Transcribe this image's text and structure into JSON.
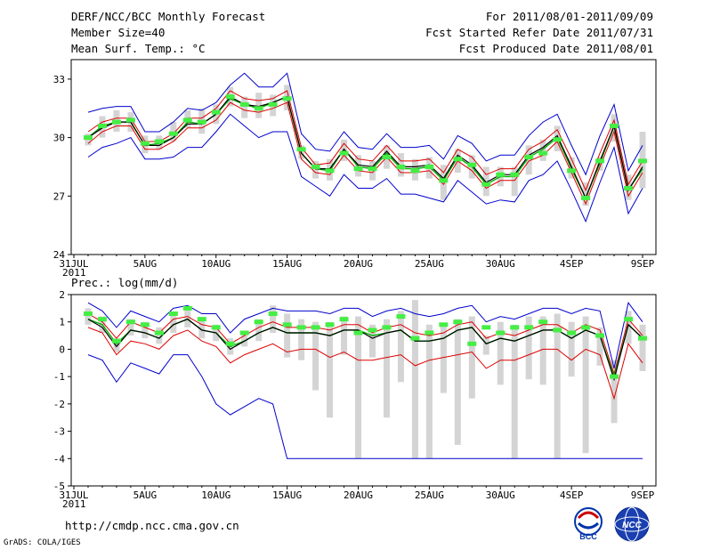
{
  "header": {
    "title": "DERF/NCC/BCC Monthly Forecast",
    "member_size": "Member Size=40",
    "top_variable": "Mean Surf. Temp.: °C",
    "forecast_period": "For 2011/08/01-2011/09/09",
    "fcst_started": "Fcst Started Refer Date 2011/07/31",
    "fcst_produced": "Fcst Produced Date 2011/08/01"
  },
  "footer": {
    "url": "http://cmdp.ncc.cma.gov.cn",
    "grads_credit": "GrADS: COLA/IGES",
    "logo_bcc": "BCC",
    "logo_ncc": "NCC"
  },
  "colors": {
    "envelope": "#0000cc",
    "spread": "#dd0000",
    "median": "#000000",
    "ensemble_mean": "#00aa00",
    "obs_marker": "#44ee44",
    "range_bar": "#d4d4d4"
  },
  "chart_data": [
    {
      "type": "line",
      "title": "Mean Surf. Temp.: °C",
      "x": [
        1,
        2,
        3,
        4,
        5,
        6,
        7,
        8,
        9,
        10,
        11,
        12,
        13,
        14,
        15,
        16,
        17,
        18,
        19,
        20,
        21,
        22,
        23,
        24,
        25,
        26,
        27,
        28,
        29,
        30,
        31,
        32,
        33,
        34,
        35,
        36,
        37,
        38,
        39,
        40
      ],
      "x_tick_labels": [
        {
          "x": 0,
          "label": "31JUL",
          "sublabel": "2011"
        },
        {
          "x": 5,
          "label": "5AUG"
        },
        {
          "x": 10,
          "label": "10AUG"
        },
        {
          "x": 15,
          "label": "15AUG"
        },
        {
          "x": 20,
          "label": "20AUG"
        },
        {
          "x": 25,
          "label": "25AUG"
        },
        {
          "x": 30,
          "label": "30AUG"
        },
        {
          "x": 35,
          "label": "4SEP"
        },
        {
          "x": 40,
          "label": "9SEP"
        }
      ],
      "xlim": [
        0,
        40.5
      ],
      "ylim": [
        24,
        34
      ],
      "yticks": [
        24,
        27,
        30,
        33
      ],
      "series": [
        {
          "name": "max",
          "values": [
            31.3,
            31.5,
            31.6,
            31.6,
            30.3,
            30.3,
            30.8,
            31.5,
            31.4,
            31.8,
            32.7,
            33.3,
            32.6,
            32.6,
            33.3,
            30.2,
            29.4,
            29.3,
            30.3,
            29.5,
            29.4,
            30.2,
            29.5,
            29.5,
            29.6,
            28.9,
            30.1,
            29.7,
            28.8,
            29.1,
            29.1,
            30.1,
            30.8,
            31.2,
            29.6,
            28.1,
            30.1,
            31.7,
            28.3,
            29.6
          ]
        },
        {
          "name": "upper",
          "values": [
            30.3,
            30.8,
            31.0,
            31.0,
            29.8,
            29.8,
            30.2,
            31.0,
            31.0,
            31.5,
            32.4,
            32.0,
            31.9,
            32.0,
            32.4,
            29.5,
            28.6,
            28.7,
            29.7,
            28.9,
            28.8,
            29.6,
            28.8,
            28.8,
            28.9,
            28.2,
            29.4,
            29.0,
            28.1,
            28.4,
            28.4,
            29.4,
            29.8,
            30.4,
            28.9,
            27.3,
            29.2,
            30.9,
            27.6,
            28.8
          ]
        },
        {
          "name": "median",
          "values": [
            30.0,
            30.5,
            30.8,
            30.8,
            29.6,
            29.6,
            30.0,
            30.7,
            30.7,
            31.2,
            32.1,
            31.7,
            31.6,
            31.8,
            32.1,
            29.2,
            28.4,
            28.4,
            29.4,
            28.6,
            28.5,
            29.3,
            28.5,
            28.5,
            28.6,
            27.9,
            29.1,
            28.6,
            27.7,
            28.1,
            28.1,
            29.1,
            29.5,
            30.1,
            28.5,
            26.9,
            28.8,
            30.6,
            27.3,
            28.5
          ]
        },
        {
          "name": "mean",
          "values": [
            30.0,
            30.6,
            30.8,
            30.8,
            29.6,
            29.7,
            30.0,
            30.8,
            30.7,
            31.2,
            32.0,
            31.7,
            31.5,
            31.8,
            32.1,
            29.2,
            28.4,
            28.3,
            29.4,
            28.5,
            28.4,
            29.2,
            28.4,
            28.4,
            28.5,
            27.8,
            29.0,
            28.5,
            27.6,
            28.0,
            28.0,
            29.0,
            29.4,
            30.0,
            28.4,
            26.9,
            28.7,
            30.6,
            27.3,
            28.4
          ]
        },
        {
          "name": "lower",
          "values": [
            29.7,
            30.3,
            30.6,
            30.6,
            29.4,
            29.4,
            29.8,
            30.5,
            30.5,
            30.9,
            31.8,
            31.4,
            31.3,
            31.5,
            31.8,
            28.9,
            28.2,
            28.1,
            29.1,
            28.3,
            28.2,
            29.0,
            28.2,
            28.2,
            28.3,
            27.6,
            28.8,
            28.3,
            27.4,
            27.8,
            27.8,
            28.8,
            29.1,
            29.8,
            28.2,
            26.6,
            28.5,
            30.3,
            27.0,
            28.2
          ]
        },
        {
          "name": "min",
          "values": [
            29.0,
            29.5,
            29.7,
            30.0,
            28.9,
            28.9,
            29.0,
            29.5,
            29.5,
            30.3,
            31.2,
            30.6,
            30.0,
            30.3,
            30.3,
            28.0,
            27.5,
            27.0,
            28.1,
            27.4,
            27.4,
            27.9,
            27.1,
            27.1,
            26.9,
            26.7,
            27.8,
            27.2,
            26.6,
            26.8,
            26.7,
            27.8,
            28.1,
            28.8,
            27.3,
            25.7,
            27.7,
            29.5,
            26.1,
            27.4
          ]
        }
      ],
      "obs_markers": [
        30.0,
        30.6,
        30.8,
        30.9,
        29.7,
        29.8,
        30.2,
        30.9,
        30.8,
        31.3,
        32.1,
        31.7,
        31.5,
        31.7,
        32.0,
        29.4,
        28.5,
        28.3,
        29.2,
        28.4,
        28.4,
        29.0,
        28.5,
        28.3,
        28.5,
        27.8,
        28.9,
        28.6,
        27.6,
        28.1,
        28.1,
        29.0,
        29.2,
        29.9,
        28.3,
        26.9,
        28.8,
        30.6,
        27.4,
        28.8
      ],
      "range_bars": [
        [
          29.6,
          30.2
        ],
        [
          30.0,
          31.1
        ],
        [
          30.3,
          31.4
        ],
        [
          30.3,
          31.3
        ],
        [
          29.2,
          30.1
        ],
        [
          29.4,
          30.1
        ],
        [
          29.8,
          30.8
        ],
        [
          30.5,
          31.4
        ],
        [
          30.2,
          31.5
        ],
        [
          30.7,
          31.7
        ],
        [
          31.6,
          32.6
        ],
        [
          31.0,
          32.1
        ],
        [
          31.0,
          32.3
        ],
        [
          31.1,
          32.2
        ],
        [
          31.4,
          32.7
        ],
        [
          28.9,
          29.6
        ],
        [
          27.9,
          28.8
        ],
        [
          27.8,
          28.9
        ],
        [
          28.8,
          29.9
        ],
        [
          28.0,
          29.1
        ],
        [
          27.8,
          28.8
        ],
        [
          28.4,
          29.6
        ],
        [
          28.0,
          29.2
        ],
        [
          27.8,
          28.9
        ],
        [
          27.9,
          29.0
        ],
        [
          26.8,
          28.6
        ],
        [
          28.2,
          29.4
        ],
        [
          27.9,
          29.1
        ],
        [
          27.0,
          28.5
        ],
        [
          27.5,
          28.5
        ],
        [
          27.0,
          28.5
        ],
        [
          28.1,
          29.6
        ],
        [
          28.8,
          29.9
        ],
        [
          29.3,
          30.6
        ],
        [
          27.9,
          29.0
        ],
        [
          26.5,
          27.7
        ],
        [
          28.3,
          29.0
        ],
        [
          29.8,
          31.2
        ],
        [
          26.8,
          28.1
        ],
        [
          27.4,
          30.3
        ]
      ]
    },
    {
      "type": "line",
      "title": "Prec.: log(mm/d)",
      "x": [
        1,
        2,
        3,
        4,
        5,
        6,
        7,
        8,
        9,
        10,
        11,
        12,
        13,
        14,
        15,
        16,
        17,
        18,
        19,
        20,
        21,
        22,
        23,
        24,
        25,
        26,
        27,
        28,
        29,
        30,
        31,
        32,
        33,
        34,
        35,
        36,
        37,
        38,
        39,
        40
      ],
      "x_tick_labels": [
        {
          "x": 0,
          "label": "31JUL",
          "sublabel": "2011"
        },
        {
          "x": 5,
          "label": "5AUG"
        },
        {
          "x": 10,
          "label": "10AUG"
        },
        {
          "x": 15,
          "label": "15AUG"
        },
        {
          "x": 20,
          "label": "20AUG"
        },
        {
          "x": 25,
          "label": "25AUG"
        },
        {
          "x": 30,
          "label": "30AUG"
        },
        {
          "x": 35,
          "label": "4SEP"
        },
        {
          "x": 40,
          "label": "9SEP"
        }
      ],
      "xlim": [
        0,
        40.5
      ],
      "ylim": [
        -5,
        2
      ],
      "yticks": [
        -5,
        -4,
        -3,
        -2,
        -1,
        0,
        1,
        2
      ],
      "series": [
        {
          "name": "max",
          "values": [
            1.7,
            1.4,
            0.8,
            1.4,
            1.2,
            1.0,
            1.5,
            1.6,
            1.3,
            1.3,
            0.6,
            1.1,
            1.3,
            1.5,
            1.4,
            1.4,
            1.4,
            1.3,
            1.5,
            1.5,
            1.2,
            1.4,
            1.5,
            1.3,
            1.2,
            1.3,
            1.5,
            1.6,
            1.0,
            1.2,
            1.1,
            1.3,
            1.5,
            1.5,
            1.3,
            1.5,
            1.4,
            -0.7,
            1.7,
            1.0
          ]
        },
        {
          "name": "upper",
          "values": [
            1.3,
            1.0,
            0.4,
            1.0,
            0.8,
            0.6,
            1.1,
            1.2,
            0.9,
            0.8,
            0.2,
            0.5,
            0.8,
            1.0,
            0.8,
            0.8,
            0.8,
            0.7,
            0.9,
            0.9,
            0.6,
            0.8,
            0.9,
            0.6,
            0.5,
            0.6,
            0.9,
            1.0,
            0.4,
            0.6,
            0.5,
            0.7,
            0.9,
            0.9,
            0.6,
            0.9,
            0.7,
            -0.9,
            1.1,
            0.5
          ]
        },
        {
          "name": "median",
          "values": [
            1.1,
            0.8,
            0.1,
            0.7,
            0.6,
            0.4,
            0.9,
            1.1,
            0.7,
            0.6,
            0.0,
            0.3,
            0.6,
            0.8,
            0.6,
            0.6,
            0.6,
            0.5,
            0.7,
            0.7,
            0.4,
            0.6,
            0.7,
            0.3,
            0.3,
            0.4,
            0.7,
            0.8,
            0.2,
            0.4,
            0.3,
            0.5,
            0.7,
            0.7,
            0.4,
            0.7,
            0.5,
            -1.1,
            0.9,
            0.4
          ]
        },
        {
          "name": "mean",
          "values": [
            1.1,
            0.9,
            0.2,
            0.7,
            0.6,
            0.4,
            0.9,
            1.1,
            0.7,
            0.6,
            0.1,
            0.3,
            0.6,
            0.8,
            0.6,
            0.6,
            0.6,
            0.5,
            0.7,
            0.7,
            0.5,
            0.6,
            0.7,
            0.3,
            0.3,
            0.4,
            0.7,
            0.8,
            0.2,
            0.4,
            0.3,
            0.5,
            0.7,
            0.7,
            0.4,
            0.7,
            0.5,
            -1.0,
            0.9,
            0.4
          ]
        },
        {
          "name": "lower",
          "values": [
            0.8,
            0.6,
            -0.2,
            0.3,
            0.2,
            0.0,
            0.5,
            0.7,
            0.3,
            0.1,
            -0.5,
            -0.2,
            0.0,
            0.2,
            -0.1,
            0.0,
            0.0,
            -0.3,
            -0.1,
            -0.4,
            -0.4,
            -0.3,
            -0.2,
            -0.6,
            -0.4,
            -0.3,
            -0.2,
            -0.1,
            -0.7,
            -0.4,
            -0.4,
            -0.2,
            0.0,
            0.0,
            -0.4,
            0.0,
            -0.2,
            -1.8,
            0.2,
            -0.5
          ]
        },
        {
          "name": "min",
          "values": [
            -0.2,
            -0.4,
            -1.2,
            -0.5,
            -0.7,
            -0.9,
            -0.2,
            -0.2,
            -1.0,
            -2.0,
            -2.4,
            -2.1,
            -1.8,
            -2.0,
            -4.0,
            -4.0,
            -4.0,
            -4.0,
            -4.0,
            -4.0,
            -4.0,
            -4.0,
            -4.0,
            -4.0,
            -4.0,
            -4.0,
            -4.0,
            -4.0,
            -4.0,
            -4.0,
            -4.0,
            -4.0,
            -4.0,
            -4.0,
            -4.0,
            -4.0,
            -4.0,
            -4.0,
            -4.0,
            -4.0
          ]
        }
      ],
      "obs_markers": [
        1.3,
        1.1,
        0.3,
        1.0,
        0.9,
        0.6,
        1.3,
        1.5,
        1.1,
        0.8,
        0.2,
        0.6,
        1.0,
        1.3,
        0.9,
        0.8,
        0.8,
        0.9,
        1.1,
        0.6,
        0.7,
        0.8,
        1.2,
        0.4,
        0.6,
        0.9,
        1.0,
        0.2,
        0.8,
        0.6,
        0.8,
        0.8,
        1.0,
        0.7,
        0.6,
        0.8,
        0.5,
        -1.0,
        1.1,
        0.4
      ],
      "range_bars": [
        [
          0.9,
          1.5
        ],
        [
          0.6,
          1.2
        ],
        [
          -0.1,
          0.4
        ],
        [
          0.5,
          1.1
        ],
        [
          0.4,
          1.0
        ],
        [
          0.2,
          0.8
        ],
        [
          0.6,
          1.3
        ],
        [
          0.8,
          1.5
        ],
        [
          0.4,
          1.1
        ],
        [
          0.3,
          0.9
        ],
        [
          -0.2,
          0.4
        ],
        [
          0.1,
          0.6
        ],
        [
          0.3,
          1.1
        ],
        [
          0.6,
          1.6
        ],
        [
          -0.3,
          1.3
        ],
        [
          -0.4,
          1.1
        ],
        [
          -1.5,
          1.0
        ],
        [
          -2.5,
          1.0
        ],
        [
          -0.2,
          1.2
        ],
        [
          -4.0,
          1.2
        ],
        [
          -0.3,
          0.9
        ],
        [
          -2.5,
          1.1
        ],
        [
          -1.2,
          1.4
        ],
        [
          -4.0,
          1.8
        ],
        [
          -4.0,
          0.9
        ],
        [
          -1.6,
          0.9
        ],
        [
          -3.5,
          1.1
        ],
        [
          -1.8,
          1.2
        ],
        [
          -0.2,
          0.5
        ],
        [
          -1.3,
          1.0
        ],
        [
          -4.0,
          0.9
        ],
        [
          -1.1,
          1.2
        ],
        [
          -1.3,
          1.2
        ],
        [
          -4.0,
          1.3
        ],
        [
          -1.0,
          1.0
        ],
        [
          -3.8,
          1.2
        ],
        [
          -0.6,
          0.8
        ],
        [
          -2.7,
          -0.4
        ],
        [
          0.2,
          1.4
        ],
        [
          -0.8,
          0.9
        ]
      ]
    }
  ]
}
